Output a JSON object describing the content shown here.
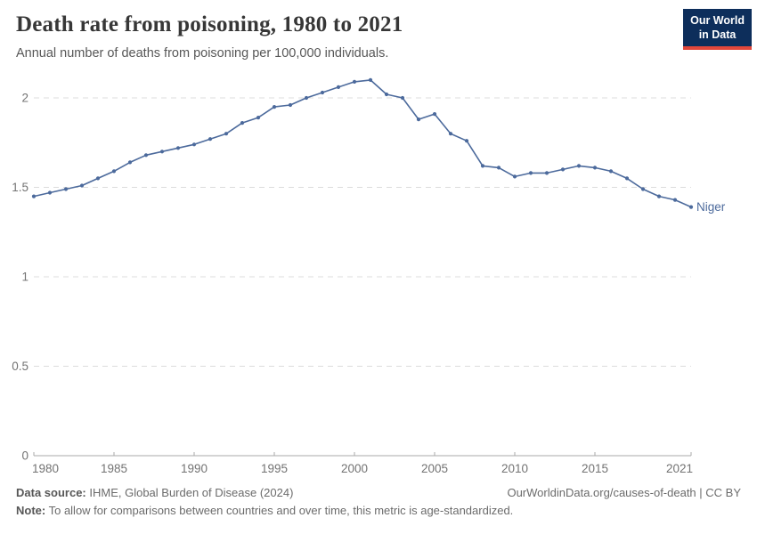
{
  "header": {
    "title": "Death rate from poisoning, 1980 to 2021",
    "subtitle": "Annual number of deaths from poisoning per 100,000 individuals.",
    "logo_line1": "Our World",
    "logo_line2": "in Data",
    "logo_bg_color": "#0d2e5b",
    "logo_accent_color": "#e2473b"
  },
  "chart_data": {
    "type": "line",
    "title": "Death rate from poisoning, 1980 to 2021",
    "subtitle": "Annual number of deaths from poisoning per 100,000 individuals.",
    "xlabel": "",
    "ylabel": "",
    "xlim": [
      1980,
      2021
    ],
    "ylim": [
      0,
      2
    ],
    "x_tick_labels": [
      1980,
      1985,
      1990,
      1995,
      2000,
      2005,
      2010,
      2015,
      2021
    ],
    "y_tick_labels": [
      "0",
      "0.5",
      "1",
      "1.5",
      "2"
    ],
    "y_tick_values": [
      0,
      0.5,
      1,
      1.5,
      2
    ],
    "grid": "dashed-horizontal",
    "legend_position": "end-of-line-label",
    "series": [
      {
        "name": "Niger",
        "color": "#4C6A9C",
        "x": [
          1980,
          1981,
          1982,
          1983,
          1984,
          1985,
          1986,
          1987,
          1988,
          1989,
          1990,
          1991,
          1992,
          1993,
          1994,
          1995,
          1996,
          1997,
          1998,
          1999,
          2000,
          2001,
          2002,
          2003,
          2004,
          2005,
          2006,
          2007,
          2008,
          2009,
          2010,
          2011,
          2012,
          2013,
          2014,
          2015,
          2016,
          2017,
          2018,
          2019,
          2020,
          2021
        ],
        "values": [
          1.45,
          1.47,
          1.49,
          1.51,
          1.55,
          1.59,
          1.64,
          1.68,
          1.7,
          1.72,
          1.74,
          1.77,
          1.8,
          1.86,
          1.89,
          1.95,
          1.96,
          2.0,
          2.03,
          2.06,
          2.09,
          2.1,
          2.02,
          2.0,
          1.88,
          1.91,
          1.8,
          1.76,
          1.62,
          1.61,
          1.56,
          1.58,
          1.58,
          1.6,
          1.62,
          1.61,
          1.59,
          1.55,
          1.49,
          1.45,
          1.43,
          1.39
        ]
      }
    ]
  },
  "footer": {
    "source_label": "Data source:",
    "source_text": " IHME, Global Burden of Disease (2024)",
    "link_text": "OurWorldinData.org/causes-of-death | CC BY",
    "note_label": "Note:",
    "note_text": " To allow for comparisons between countries and over time, this metric is age-standardized."
  },
  "colors": {
    "line": "#4C6A9C",
    "grid": "#dcdcdc",
    "axis": "#a8a8a8",
    "tick_label": "#737373"
  }
}
